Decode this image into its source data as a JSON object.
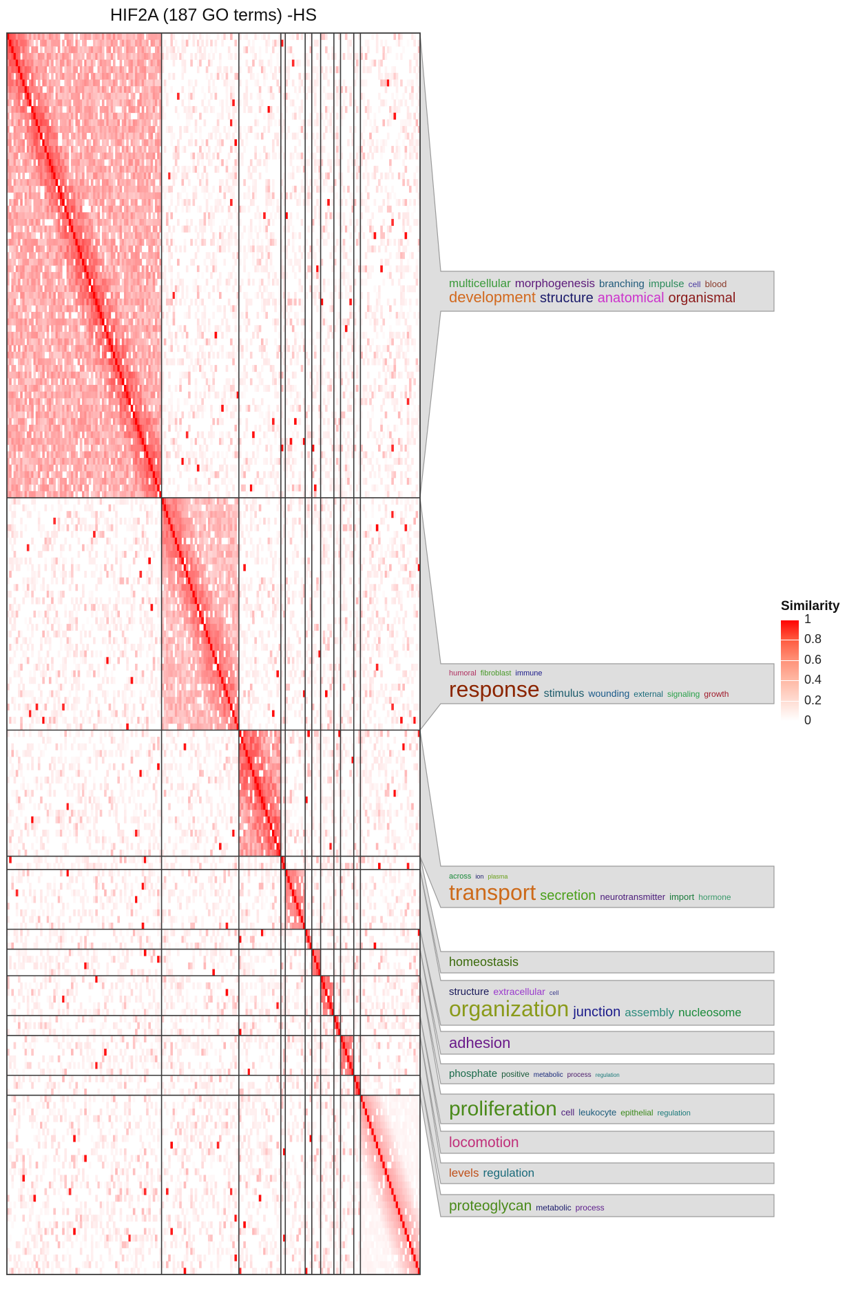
{
  "title": "HIF2A (187 GO terms) -HS",
  "chart_data": {
    "type": "heatmap",
    "title": "HIF2A (187 GO terms) -HS",
    "n_terms": 187,
    "clusters": [
      {
        "size": 70
      },
      {
        "size": 35
      },
      {
        "size": 19
      },
      {
        "size": 2
      },
      {
        "size": 9
      },
      {
        "size": 3
      },
      {
        "size": 4
      },
      {
        "size": 6
      },
      {
        "size": 3
      },
      {
        "size": 6
      },
      {
        "size": 3
      },
      {
        "size": 27
      }
    ],
    "color_scale": {
      "label": "Similarity",
      "min": 0,
      "max": 1,
      "ticks": [
        "1",
        "0.8",
        "0.6",
        "0.4",
        "0.2",
        "0"
      ],
      "low_color": "#ffffff",
      "high_color": "#ff0000"
    },
    "word_clouds": [
      {
        "cluster": 1,
        "lines": [
          [
            {
              "t": "multicellular",
              "s": 17,
              "c": "#3a9a3a"
            },
            {
              "t": "morphogenesis",
              "s": 17,
              "c": "#5c1a7a"
            },
            {
              "t": "branching",
              "s": 15,
              "c": "#1f5a7a"
            },
            {
              "t": "impulse",
              "s": 15,
              "c": "#2a8a5a"
            },
            {
              "t": "cell",
              "s": 12,
              "c": "#4a3aa0"
            },
            {
              "t": "blood",
              "s": 13,
              "c": "#8a3a2a"
            }
          ],
          [
            {
              "t": "development",
              "s": 22,
              "c": "#d2691e"
            },
            {
              "t": "structure",
              "s": 20,
              "c": "#1a1a6a"
            },
            {
              "t": "anatomical",
              "s": 20,
              "c": "#cc33cc"
            },
            {
              "t": "organismal",
              "s": 20,
              "c": "#8b1a1a"
            }
          ]
        ]
      },
      {
        "cluster": 2,
        "lines": [
          [
            {
              "t": "humoral",
              "s": 11,
              "c": "#b03060"
            },
            {
              "t": "fibroblast",
              "s": 11,
              "c": "#4a9a2a"
            },
            {
              "t": "immune",
              "s": 11,
              "c": "#1a1a8a"
            }
          ],
          [
            {
              "t": "response",
              "s": 32,
              "c": "#8b2500"
            },
            {
              "t": "stimulus",
              "s": 16,
              "c": "#1a5a6a"
            },
            {
              "t": "wounding",
              "s": 14,
              "c": "#1a5a8a"
            },
            {
              "t": "external",
              "s": 12,
              "c": "#1a6a7a"
            },
            {
              "t": "signaling",
              "s": 12,
              "c": "#2aa04a"
            },
            {
              "t": "growth",
              "s": 12,
              "c": "#a01a2a"
            }
          ]
        ]
      },
      {
        "cluster": 3,
        "lines": [
          [
            {
              "t": "across",
              "s": 11,
              "c": "#1a8a3a"
            },
            {
              "t": "ion",
              "s": 9,
              "c": "#1a1a6a"
            },
            {
              "t": "plasma",
              "s": 9,
              "c": "#6aa01a"
            }
          ],
          [
            {
              "t": "transport",
              "s": 32,
              "c": "#cd6a1a"
            },
            {
              "t": "secretion",
              "s": 20,
              "c": "#4aa01a"
            },
            {
              "t": "neurotransmitter",
              "s": 13,
              "c": "#4a1a7a"
            },
            {
              "t": "import",
              "s": 13,
              "c": "#1a7a3a"
            },
            {
              "t": "hormone",
              "s": 12,
              "c": "#3a9a6a"
            }
          ]
        ]
      },
      {
        "cluster": 4,
        "lines": [
          [
            {
              "t": "homeostasis",
              "s": 18,
              "c": "#3a6a0a"
            }
          ]
        ]
      },
      {
        "cluster": 5,
        "lines": [
          [
            {
              "t": "structure",
              "s": 15,
              "c": "#1a1a5a"
            },
            {
              "t": "extracellular",
              "s": 14,
              "c": "#9a3acc"
            },
            {
              "t": "cell",
              "s": 9,
              "c": "#3a3a8a"
            }
          ],
          [
            {
              "t": "organization",
              "s": 32,
              "c": "#8a9a1a"
            },
            {
              "t": "junction",
              "s": 20,
              "c": "#1a1a8a"
            },
            {
              "t": "assembly",
              "s": 17,
              "c": "#2a8a7a"
            },
            {
              "t": "nucleosome",
              "s": 17,
              "c": "#1a8a3a"
            }
          ]
        ]
      },
      {
        "cluster": 6,
        "lines": [
          [
            {
              "t": "adhesion",
              "s": 22,
              "c": "#6a1a8a"
            }
          ]
        ]
      },
      {
        "cluster": 7,
        "lines": [
          [
            {
              "t": "phosphate",
              "s": 15,
              "c": "#1a6a4a"
            },
            {
              "t": "positive",
              "s": 12,
              "c": "#1a5a3a"
            },
            {
              "t": "metabolic",
              "s": 10,
              "c": "#1a2a7a"
            },
            {
              "t": "process",
              "s": 10,
              "c": "#4a1a6a"
            },
            {
              "t": "regulation",
              "s": 8,
              "c": "#1a7a7a"
            }
          ]
        ]
      },
      {
        "cluster": 8,
        "lines": [
          [
            {
              "t": "proliferation",
              "s": 30,
              "c": "#4a8a1a"
            },
            {
              "t": "cell",
              "s": 13,
              "c": "#4a1a7a"
            },
            {
              "t": "leukocyte",
              "s": 13,
              "c": "#1a5a7a"
            },
            {
              "t": "epithelial",
              "s": 12,
              "c": "#3a8a1a"
            },
            {
              "t": "regulation",
              "s": 11,
              "c": "#1a7a7a"
            }
          ]
        ]
      },
      {
        "cluster": 9,
        "lines": [
          [
            {
              "t": "locomotion",
              "s": 21,
              "c": "#c0307a"
            }
          ]
        ]
      },
      {
        "cluster": 10,
        "lines": [
          [
            {
              "t": "levels",
              "s": 17,
              "c": "#c0501a"
            },
            {
              "t": "regulation",
              "s": 17,
              "c": "#1a6a7a"
            }
          ]
        ]
      },
      {
        "cluster": 11,
        "lines": [
          [
            {
              "t": "proteoglycan",
              "s": 21,
              "c": "#4a8a1a"
            },
            {
              "t": "metabolic",
              "s": 12,
              "c": "#1a1a6a"
            },
            {
              "t": "process",
              "s": 12,
              "c": "#5a1a8a"
            }
          ]
        ]
      }
    ]
  }
}
